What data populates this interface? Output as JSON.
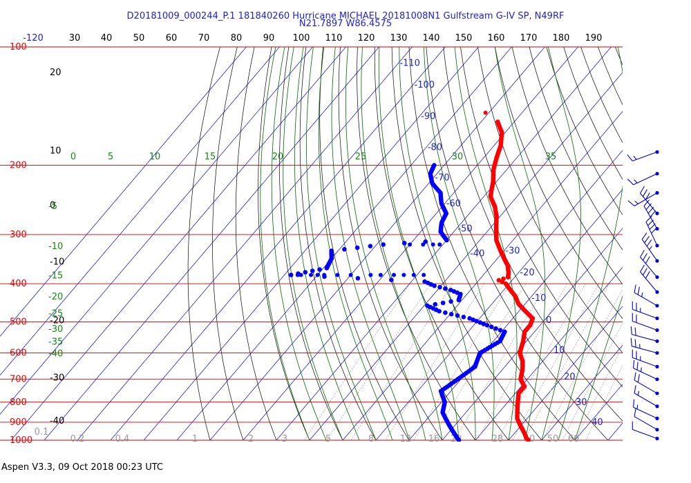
{
  "title_line1": "D20181009_000244_P.1 181840260 Hurricane MICHAEL 20181008N1 Gulfstream G-IV SP, N49RF",
  "title_line2": "N21.7897 W86.4575",
  "footer": "Aspen V3.3, 09 Oct 2018  00:23 UTC",
  "colors": {
    "temperature": "#ff0000",
    "dewpoint": "#0000ff",
    "isobar": "#cc0000",
    "isotherm": "#2020c0",
    "moist_adiabat": "#006600",
    "mixing_ratio": "#888888",
    "wind": "#0000cc"
  },
  "chart_data": {
    "type": "scatter",
    "chart_kind": "skew-t log-p diagram",
    "y_axis": {
      "scale": "log",
      "quantity": "pressure (hPa)",
      "range": [
        1000,
        100
      ],
      "tick_labels": [
        "100",
        "200",
        "300",
        "400",
        "500",
        "600",
        "700",
        "800",
        "900",
        "1000"
      ]
    },
    "top_axis_labels": [
      "-120",
      "30",
      "40",
      "50",
      "60",
      "70",
      "80",
      "90",
      "100",
      "110",
      "120",
      "130",
      "140",
      "150",
      "160",
      "170",
      "180",
      "190"
    ],
    "left_axis_labels": [
      {
        "text": "20",
        "p": 117
      },
      {
        "text": "10",
        "p": 185
      },
      {
        "text": "0",
        "p": 255
      },
      {
        "text": "-10",
        "p": 355
      },
      {
        "text": "-20",
        "p": 500
      },
      {
        "text": "-30",
        "p": 700
      },
      {
        "text": "-40",
        "p": 900
      }
    ],
    "isotherm_labels": [
      {
        "text": "-110",
        "t": -110,
        "p": 110
      },
      {
        "text": "-100",
        "t": -100,
        "p": 125
      },
      {
        "text": "-90",
        "t": -90,
        "p": 150
      },
      {
        "text": "-80",
        "t": -80,
        "p": 180
      },
      {
        "text": "-70",
        "t": -70,
        "p": 215
      },
      {
        "text": "-60",
        "t": -60,
        "p": 250
      },
      {
        "text": "-50",
        "t": -50,
        "p": 290
      },
      {
        "text": "-40",
        "t": -40,
        "p": 335
      },
      {
        "text": "-30",
        "t": -30,
        "p": 330
      },
      {
        "text": "-20",
        "t": -20,
        "p": 375
      },
      {
        "text": "-10",
        "t": -10,
        "p": 435
      },
      {
        "text": "0",
        "t": 0,
        "p": 495
      },
      {
        "text": "10",
        "t": 10,
        "p": 590
      },
      {
        "text": "20",
        "t": 20,
        "p": 690
      },
      {
        "text": "30",
        "t": 30,
        "p": 800
      },
      {
        "text": "40",
        "t": 40,
        "p": 900
      }
    ],
    "moist_adiabat_labels": [
      {
        "text": "0",
        "x": 106
      },
      {
        "text": "5",
        "x": 160
      },
      {
        "text": "10",
        "x": 224
      },
      {
        "text": "15",
        "x": 304
      },
      {
        "text": "20",
        "x": 402
      },
      {
        "text": "25",
        "x": 522
      },
      {
        "text": "30",
        "x": 662
      },
      {
        "text": "35",
        "x": 797
      }
    ],
    "moist_adiabat_left_labels": [
      "-5",
      "-10",
      "-15",
      "-20",
      "-25",
      "-30",
      "-35",
      "-40"
    ],
    "mixing_ratio_labels": [
      "0.1",
      "0.2",
      "0.4",
      "1",
      "2",
      "3",
      "5",
      "8",
      "12",
      "16",
      "20",
      "28",
      "40",
      "50",
      "60"
    ],
    "series": [
      {
        "name": "",
        "role": "temperature",
        "points": [
          {
            "p": 155,
            "t": -65
          },
          {
            "p": 165,
            "t": -61
          },
          {
            "p": 178,
            "t": -58
          },
          {
            "p": 192,
            "t": -56
          },
          {
            "p": 205,
            "t": -54
          },
          {
            "p": 220,
            "t": -51
          },
          {
            "p": 240,
            "t": -48
          },
          {
            "p": 255,
            "t": -44
          },
          {
            "p": 270,
            "t": -41
          },
          {
            "p": 290,
            "t": -38
          },
          {
            "p": 310,
            "t": -35
          },
          {
            "p": 330,
            "t": -31
          },
          {
            "p": 345,
            "t": -28
          },
          {
            "p": 360,
            "t": -25
          },
          {
            "p": 375,
            "t": -23
          },
          {
            "p": 385,
            "t": -22
          },
          {
            "p": 392,
            "t": -24
          },
          {
            "p": 400,
            "t": -21
          },
          {
            "p": 415,
            "t": -18
          },
          {
            "p": 430,
            "t": -15
          },
          {
            "p": 450,
            "t": -12
          },
          {
            "p": 470,
            "t": -8
          },
          {
            "p": 490,
            "t": -4
          },
          {
            "p": 510,
            "t": -3
          },
          {
            "p": 530,
            "t": -3
          },
          {
            "p": 560,
            "t": -1
          },
          {
            "p": 600,
            "t": 1
          },
          {
            "p": 630,
            "t": 4
          },
          {
            "p": 660,
            "t": 6
          },
          {
            "p": 700,
            "t": 8
          },
          {
            "p": 730,
            "t": 11
          },
          {
            "p": 760,
            "t": 11
          },
          {
            "p": 800,
            "t": 13
          },
          {
            "p": 840,
            "t": 15
          },
          {
            "p": 880,
            "t": 17
          },
          {
            "p": 920,
            "t": 20
          },
          {
            "p": 960,
            "t": 23
          },
          {
            "p": 990,
            "t": 25
          },
          {
            "p": 1000,
            "t": 26
          }
        ],
        "isolated_points": [
          {
            "p": 147,
            "t": -71
          }
        ]
      },
      {
        "name": "",
        "role": "dewpoint",
        "points": [
          {
            "p": 200,
            "t": -73
          },
          {
            "p": 210,
            "t": -72
          },
          {
            "p": 222,
            "t": -69
          },
          {
            "p": 235,
            "t": -64
          },
          {
            "p": 250,
            "t": -61
          },
          {
            "p": 265,
            "t": -57
          },
          {
            "p": 280,
            "t": -56
          },
          {
            "p": 295,
            "t": -54
          },
          {
            "p": 310,
            "t": -50
          },
          {
            "p": 318,
            "t": -68
          },
          {
            "p": 330,
            "t": -82
          },
          {
            "p": 345,
            "t": -80
          },
          {
            "p": 365,
            "t": -79
          },
          {
            "p": 380,
            "t": -88
          },
          {
            "p": 395,
            "t": -46
          },
          {
            "p": 405,
            "t": -42
          },
          {
            "p": 415,
            "t": -36
          },
          {
            "p": 425,
            "t": -32
          },
          {
            "p": 440,
            "t": -31
          },
          {
            "p": 455,
            "t": -39
          },
          {
            "p": 470,
            "t": -34
          },
          {
            "p": 490,
            "t": -23
          },
          {
            "p": 510,
            "t": -16
          },
          {
            "p": 530,
            "t": -9
          },
          {
            "p": 560,
            "t": -8
          },
          {
            "p": 600,
            "t": -11
          },
          {
            "p": 650,
            "t": -9
          },
          {
            "p": 700,
            "t": -11
          },
          {
            "p": 750,
            "t": -13
          },
          {
            "p": 800,
            "t": -9
          },
          {
            "p": 850,
            "t": -7
          },
          {
            "p": 900,
            "t": -3
          },
          {
            "p": 950,
            "t": 1
          },
          {
            "p": 1000,
            "t": 5
          }
        ],
        "sparse_points": [
          {
            "p": 318,
            "t": -60
          },
          {
            "p": 318,
            "t": -56
          },
          {
            "p": 318,
            "t": -53
          },
          {
            "p": 318,
            "t": -51
          },
          {
            "p": 380,
            "t": -86
          },
          {
            "p": 380,
            "t": -85
          },
          {
            "p": 380,
            "t": -82
          },
          {
            "p": 380,
            "t": -80
          },
          {
            "p": 380,
            "t": -78
          },
          {
            "p": 380,
            "t": -74
          },
          {
            "p": 380,
            "t": -70
          },
          {
            "p": 380,
            "t": -64
          },
          {
            "p": 380,
            "t": -61
          },
          {
            "p": 380,
            "t": -57
          },
          {
            "p": 380,
            "t": -54
          },
          {
            "p": 380,
            "t": -51
          },
          {
            "p": 380,
            "t": -48
          }
        ]
      }
    ],
    "wind_barbs": [
      {
        "p": 185,
        "dir": 250,
        "spd": 15
      },
      {
        "p": 210,
        "dir": 245,
        "spd": 15
      },
      {
        "p": 235,
        "dir": 240,
        "spd": 15
      },
      {
        "p": 265,
        "dir": 320,
        "spd": 30
      },
      {
        "p": 290,
        "dir": 330,
        "spd": 40
      },
      {
        "p": 320,
        "dir": 335,
        "spd": 40
      },
      {
        "p": 350,
        "dir": 325,
        "spd": 35
      },
      {
        "p": 385,
        "dir": 320,
        "spd": 30
      },
      {
        "p": 420,
        "dir": 320,
        "spd": 30
      },
      {
        "p": 455,
        "dir": 300,
        "spd": 25
      },
      {
        "p": 490,
        "dir": 290,
        "spd": 25
      },
      {
        "p": 525,
        "dir": 290,
        "spd": 20
      },
      {
        "p": 560,
        "dir": 285,
        "spd": 20
      },
      {
        "p": 600,
        "dir": 285,
        "spd": 25
      },
      {
        "p": 650,
        "dir": 290,
        "spd": 25
      },
      {
        "p": 700,
        "dir": 295,
        "spd": 25
      },
      {
        "p": 760,
        "dir": 300,
        "spd": 20
      },
      {
        "p": 820,
        "dir": 300,
        "spd": 15
      },
      {
        "p": 880,
        "dir": 295,
        "spd": 15
      },
      {
        "p": 940,
        "dir": 300,
        "spd": 10
      },
      {
        "p": 990,
        "dir": 290,
        "spd": 10
      }
    ],
    "grid": true
  }
}
